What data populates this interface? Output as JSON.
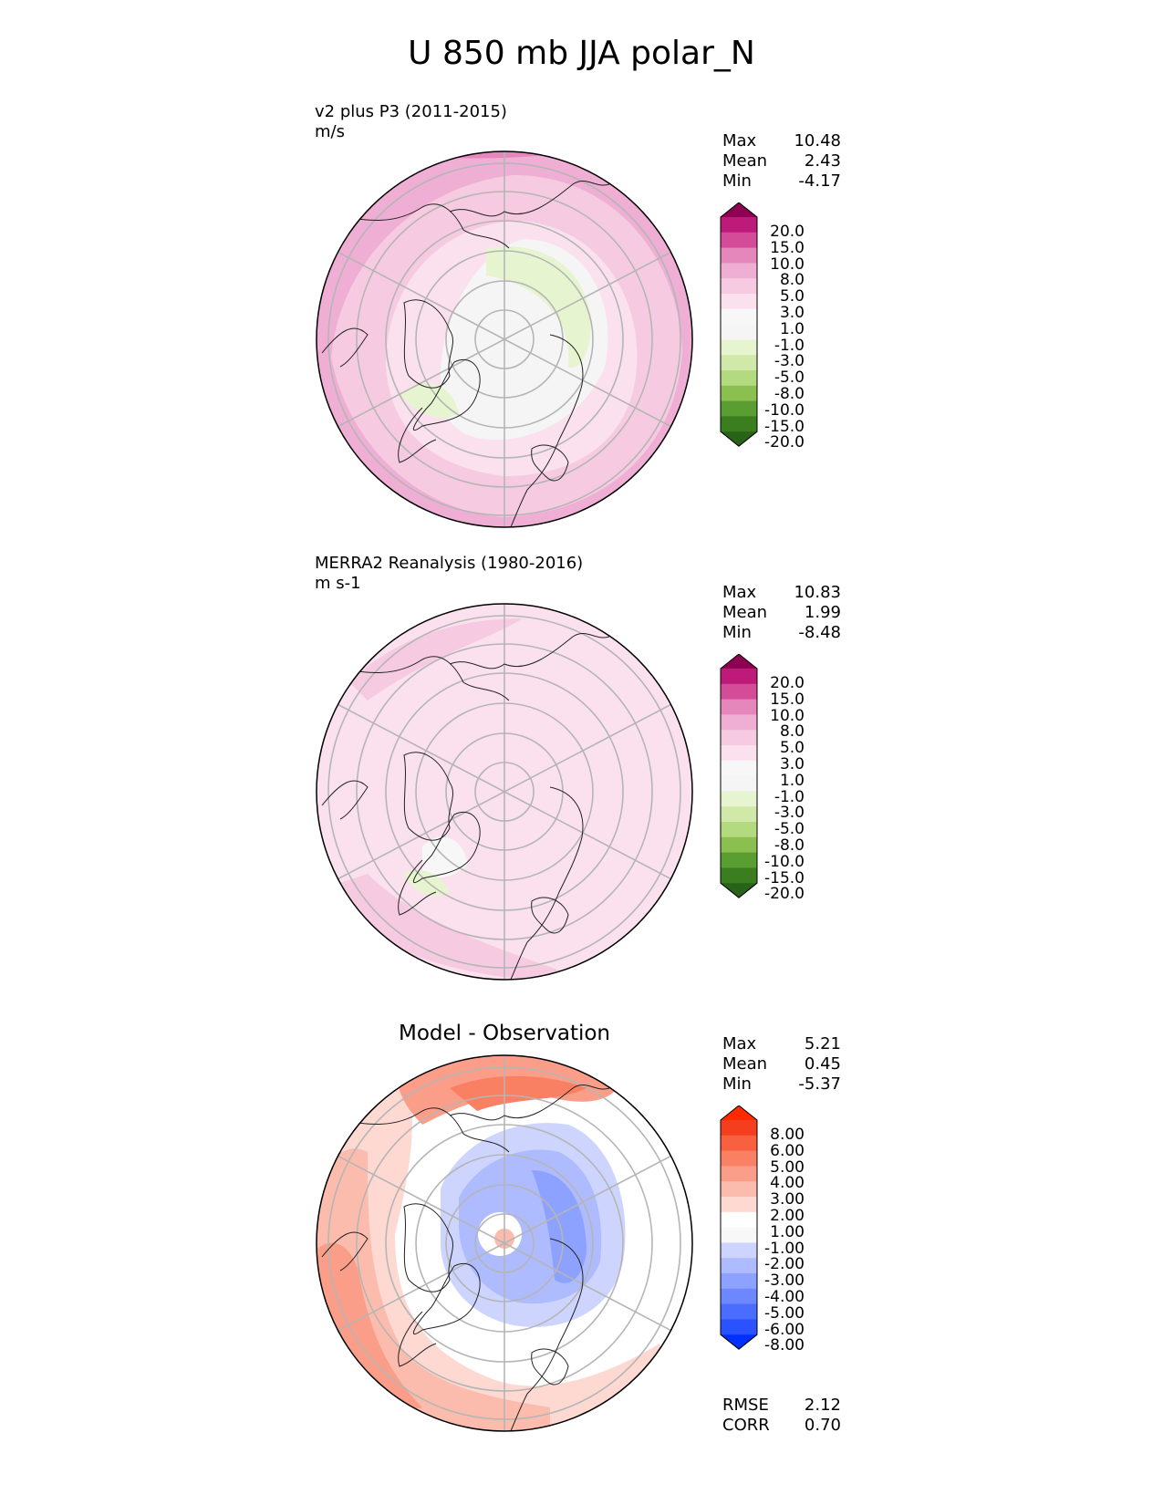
{
  "title": "U 850 mb JJA polar_N",
  "colors": {
    "pink_scale": [
      "#276419",
      "#3b7e20",
      "#5a9d31",
      "#8bbf4f",
      "#b3da7f",
      "#d0e8a8",
      "#e6f4d0",
      "#f5f5f5",
      "#f7f7f7",
      "#fbe1ed",
      "#f6cbe1",
      "#efaed4",
      "#e687bb",
      "#d44b98",
      "#bd1a79",
      "#8e0152"
    ],
    "diff_scale": [
      "#0030ff",
      "#2a52ff",
      "#4a6cff",
      "#6c87ff",
      "#8da1ff",
      "#aebbff",
      "#cdd5ff",
      "#f8f8f8",
      "#ffffff",
      "#fdd9d2",
      "#fcbcad",
      "#fb9e89",
      "#fa8064",
      "#f86040",
      "#f43f1e",
      "#ff2a00"
    ]
  },
  "panels": [
    {
      "title": "v2 plus P3 (2011-2015)",
      "units": "m/s",
      "stats": {
        "max_label": "Max",
        "max": "10.48",
        "mean_label": "Mean",
        "mean": "2.43",
        "min_label": "Min",
        "min": "-4.17"
      },
      "colorbar_labels": [
        "20.0",
        "15.0",
        "10.0",
        "8.0",
        "5.0",
        "3.0",
        "1.0",
        "-1.0",
        "-3.0",
        "-5.0",
        "-8.0",
        "-10.0",
        "-15.0",
        "-20.0"
      ]
    },
    {
      "title": "MERRA2 Reanalysis (1980-2016)",
      "units": "m s-1",
      "stats": {
        "max_label": "Max",
        "max": "10.83",
        "mean_label": "Mean",
        "mean": "1.99",
        "min_label": "Min",
        "min": "-8.48"
      },
      "colorbar_labels": [
        "20.0",
        "15.0",
        "10.0",
        "8.0",
        "5.0",
        "3.0",
        "1.0",
        "-1.0",
        "-3.0",
        "-5.0",
        "-8.0",
        "-10.0",
        "-15.0",
        "-20.0"
      ]
    },
    {
      "title": "Model - Observation",
      "stats": {
        "max_label": "Max",
        "max": "5.21",
        "mean_label": "Mean",
        "mean": "0.45",
        "min_label": "Min",
        "min": "-5.37"
      },
      "colorbar_labels": [
        "8.00",
        "6.00",
        "5.00",
        "4.00",
        "3.00",
        "2.00",
        "1.00",
        "-1.00",
        "-2.00",
        "-3.00",
        "-4.00",
        "-5.00",
        "-6.00",
        "-8.00"
      ],
      "metrics": {
        "rmse_label": "RMSE",
        "rmse": "2.12",
        "corr_label": "CORR",
        "corr": "0.70"
      }
    }
  ],
  "chart_data": [
    {
      "type": "heatmap",
      "projection": "polar_N",
      "variable": "U 850 mb",
      "season": "JJA",
      "title": "v2 plus P3 (2011-2015)",
      "units": "m/s",
      "levels": [
        -20,
        -15,
        -10,
        -8,
        -5,
        -3,
        -1,
        1,
        3,
        5,
        8,
        10,
        15,
        20
      ],
      "max": 10.48,
      "mean": 2.43,
      "min": -4.17
    },
    {
      "type": "heatmap",
      "projection": "polar_N",
      "variable": "U 850 mb",
      "season": "JJA",
      "title": "MERRA2 Reanalysis (1980-2016)",
      "units": "m s-1",
      "levels": [
        -20,
        -15,
        -10,
        -8,
        -5,
        -3,
        -1,
        1,
        3,
        5,
        8,
        10,
        15,
        20
      ],
      "max": 10.83,
      "mean": 1.99,
      "min": -8.48
    },
    {
      "type": "heatmap",
      "projection": "polar_N",
      "variable": "U 850 mb",
      "season": "JJA",
      "title": "Model - Observation",
      "levels": [
        -8,
        -6,
        -5,
        -4,
        -3,
        -2,
        -1,
        1,
        2,
        3,
        4,
        5,
        6,
        8
      ],
      "max": 5.21,
      "mean": 0.45,
      "min": -5.37,
      "rmse": 2.12,
      "corr": 0.7
    }
  ]
}
